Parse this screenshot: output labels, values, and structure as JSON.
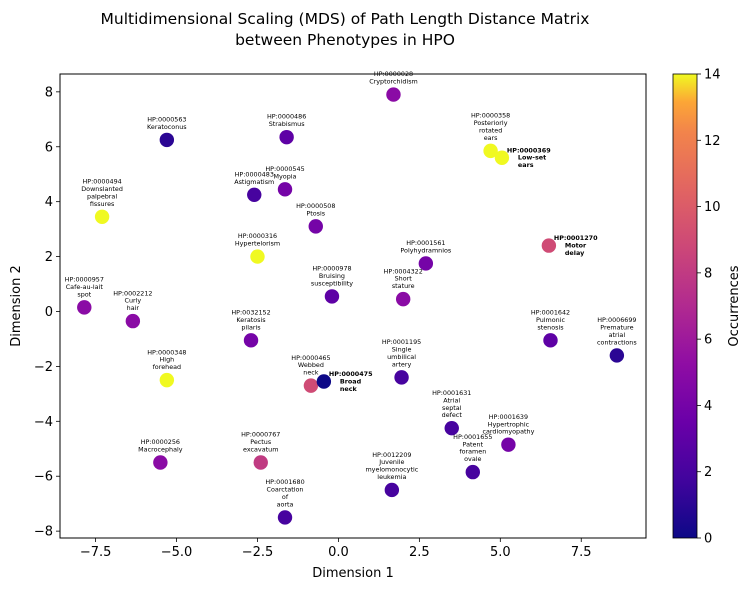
{
  "chart_data": {
    "type": "scatter",
    "title_lines": [
      "Multidimensional Scaling (MDS) of Path Length Distance Matrix",
      "between Phenotypes in HPO"
    ],
    "xlabel": "Dimension 1",
    "ylabel": "Dimension 2",
    "xlim": [
      -8.6,
      9.5
    ],
    "ylim": [
      -8.25,
      8.65
    ],
    "xticks": [
      -7.5,
      -5.0,
      -2.5,
      0.0,
      2.5,
      5.0,
      7.5
    ],
    "yticks": [
      -8,
      -6,
      -4,
      -2,
      0,
      2,
      4,
      6,
      8
    ],
    "colorbar": {
      "label": "Occurrences",
      "min": 0,
      "max": 14,
      "ticks": [
        0,
        2,
        4,
        6,
        8,
        10,
        12,
        14
      ],
      "colormap": "plasma"
    },
    "points": [
      {
        "id": "HP:0000028",
        "name": [
          "Cryptorchidism"
        ],
        "x": 1.7,
        "y": 7.9,
        "occ": 5,
        "bold": false
      },
      {
        "id": "HP:0000563",
        "name": [
          "Keratoconus"
        ],
        "x": -5.3,
        "y": 6.25,
        "occ": 1,
        "bold": false
      },
      {
        "id": "HP:0000486",
        "name": [
          "Strabismus"
        ],
        "x": -1.6,
        "y": 6.35,
        "occ": 3,
        "bold": false
      },
      {
        "id": "HP:0000358",
        "name": [
          "Posteriorly",
          "rotated",
          "ears"
        ],
        "x": 4.7,
        "y": 5.85,
        "occ": 14,
        "bold": false
      },
      {
        "id": "HP:0000369",
        "name": [
          "Low-set",
          "ears"
        ],
        "x": 5.05,
        "y": 5.6,
        "occ": 14,
        "bold": true
      },
      {
        "id": "HP:0000483",
        "name": [
          "Astigmatism"
        ],
        "x": -2.6,
        "y": 4.25,
        "occ": 2,
        "bold": false
      },
      {
        "id": "HP:0000545",
        "name": [
          "Myopia"
        ],
        "x": -1.65,
        "y": 4.45,
        "occ": 4,
        "bold": false
      },
      {
        "id": "HP:0000494",
        "name": [
          "Downslanted",
          "palpebral",
          "fissures"
        ],
        "x": -7.3,
        "y": 3.45,
        "occ": 14,
        "bold": false
      },
      {
        "id": "HP:0000508",
        "name": [
          "Ptosis"
        ],
        "x": -0.7,
        "y": 3.1,
        "occ": 4,
        "bold": false
      },
      {
        "id": "HP:0000316",
        "name": [
          "Hypertelorism"
        ],
        "x": -2.5,
        "y": 2.0,
        "occ": 14,
        "bold": false
      },
      {
        "id": "HP:0001270",
        "name": [
          "Motor",
          "delay"
        ],
        "x": 6.5,
        "y": 2.4,
        "occ": 9,
        "bold": true
      },
      {
        "id": "HP:0001561",
        "name": [
          "Polyhydramnios"
        ],
        "x": 2.7,
        "y": 1.75,
        "occ": 4,
        "bold": false
      },
      {
        "id": "HP:0000978",
        "name": [
          "Bruising",
          "susceptibility"
        ],
        "x": -0.2,
        "y": 0.55,
        "occ": 3,
        "bold": false
      },
      {
        "id": "HP:0004322",
        "name": [
          "Short",
          "stature"
        ],
        "x": 2.0,
        "y": 0.45,
        "occ": 5,
        "bold": false
      },
      {
        "id": "HP:0000957",
        "name": [
          "Cafe-au-lait",
          "spot"
        ],
        "x": -7.85,
        "y": 0.15,
        "occ": 5,
        "bold": false
      },
      {
        "id": "HP:0002212",
        "name": [
          "Curly",
          "hair"
        ],
        "x": -6.35,
        "y": -0.35,
        "occ": 5,
        "bold": false
      },
      {
        "id": "HP:0032152",
        "name": [
          "Keratosis",
          "pilaris"
        ],
        "x": -2.7,
        "y": -1.05,
        "occ": 4,
        "bold": false
      },
      {
        "id": "HP:0001642",
        "name": [
          "Pulmonic",
          "stenosis"
        ],
        "x": 6.55,
        "y": -1.05,
        "occ": 3,
        "bold": false
      },
      {
        "id": "HP:0006699",
        "name": [
          "Premature",
          "atrial",
          "contractions"
        ],
        "x": 8.6,
        "y": -1.6,
        "occ": 1,
        "bold": false
      },
      {
        "id": "HP:0000348",
        "name": [
          "High",
          "forehead"
        ],
        "x": -5.3,
        "y": -2.5,
        "occ": 14,
        "bold": false
      },
      {
        "id": "HP:0000465",
        "name": [
          "Webbed",
          "neck"
        ],
        "x": -0.85,
        "y": -2.7,
        "occ": 9,
        "bold": false
      },
      {
        "id": "HP:0000475",
        "name": [
          "Broad",
          "neck"
        ],
        "x": -0.45,
        "y": -2.55,
        "occ": 0,
        "bold": true
      },
      {
        "id": "HP:0001195",
        "name": [
          "Single",
          "umbilical",
          "artery"
        ],
        "x": 1.95,
        "y": -2.4,
        "occ": 2,
        "bold": false
      },
      {
        "id": "HP:0001631",
        "name": [
          "Atrial",
          "septal",
          "defect"
        ],
        "x": 3.5,
        "y": -4.25,
        "occ": 2,
        "bold": false
      },
      {
        "id": "HP:0001639",
        "name": [
          "Hypertrophic",
          "cardiomyopathy"
        ],
        "x": 5.25,
        "y": -4.85,
        "occ": 4,
        "bold": false
      },
      {
        "id": "HP:0001655",
        "name": [
          "Patent",
          "foramen",
          "ovale"
        ],
        "x": 4.15,
        "y": -5.85,
        "occ": 2,
        "bold": false
      },
      {
        "id": "HP:0000256",
        "name": [
          "Macrocephaly"
        ],
        "x": -5.5,
        "y": -5.5,
        "occ": 5,
        "bold": false
      },
      {
        "id": "HP:0000767",
        "name": [
          "Pectus",
          "excavatum"
        ],
        "x": -2.4,
        "y": -5.5,
        "occ": 8,
        "bold": false
      },
      {
        "id": "HP:0012209",
        "name": [
          "Juvenile",
          "myelomonocytic",
          "leukemia"
        ],
        "x": 1.65,
        "y": -6.5,
        "occ": 2,
        "bold": false
      },
      {
        "id": "HP:0001680",
        "name": [
          "Coarctation",
          "of",
          "aorta"
        ],
        "x": -1.65,
        "y": -7.5,
        "occ": 2,
        "bold": false
      }
    ]
  }
}
